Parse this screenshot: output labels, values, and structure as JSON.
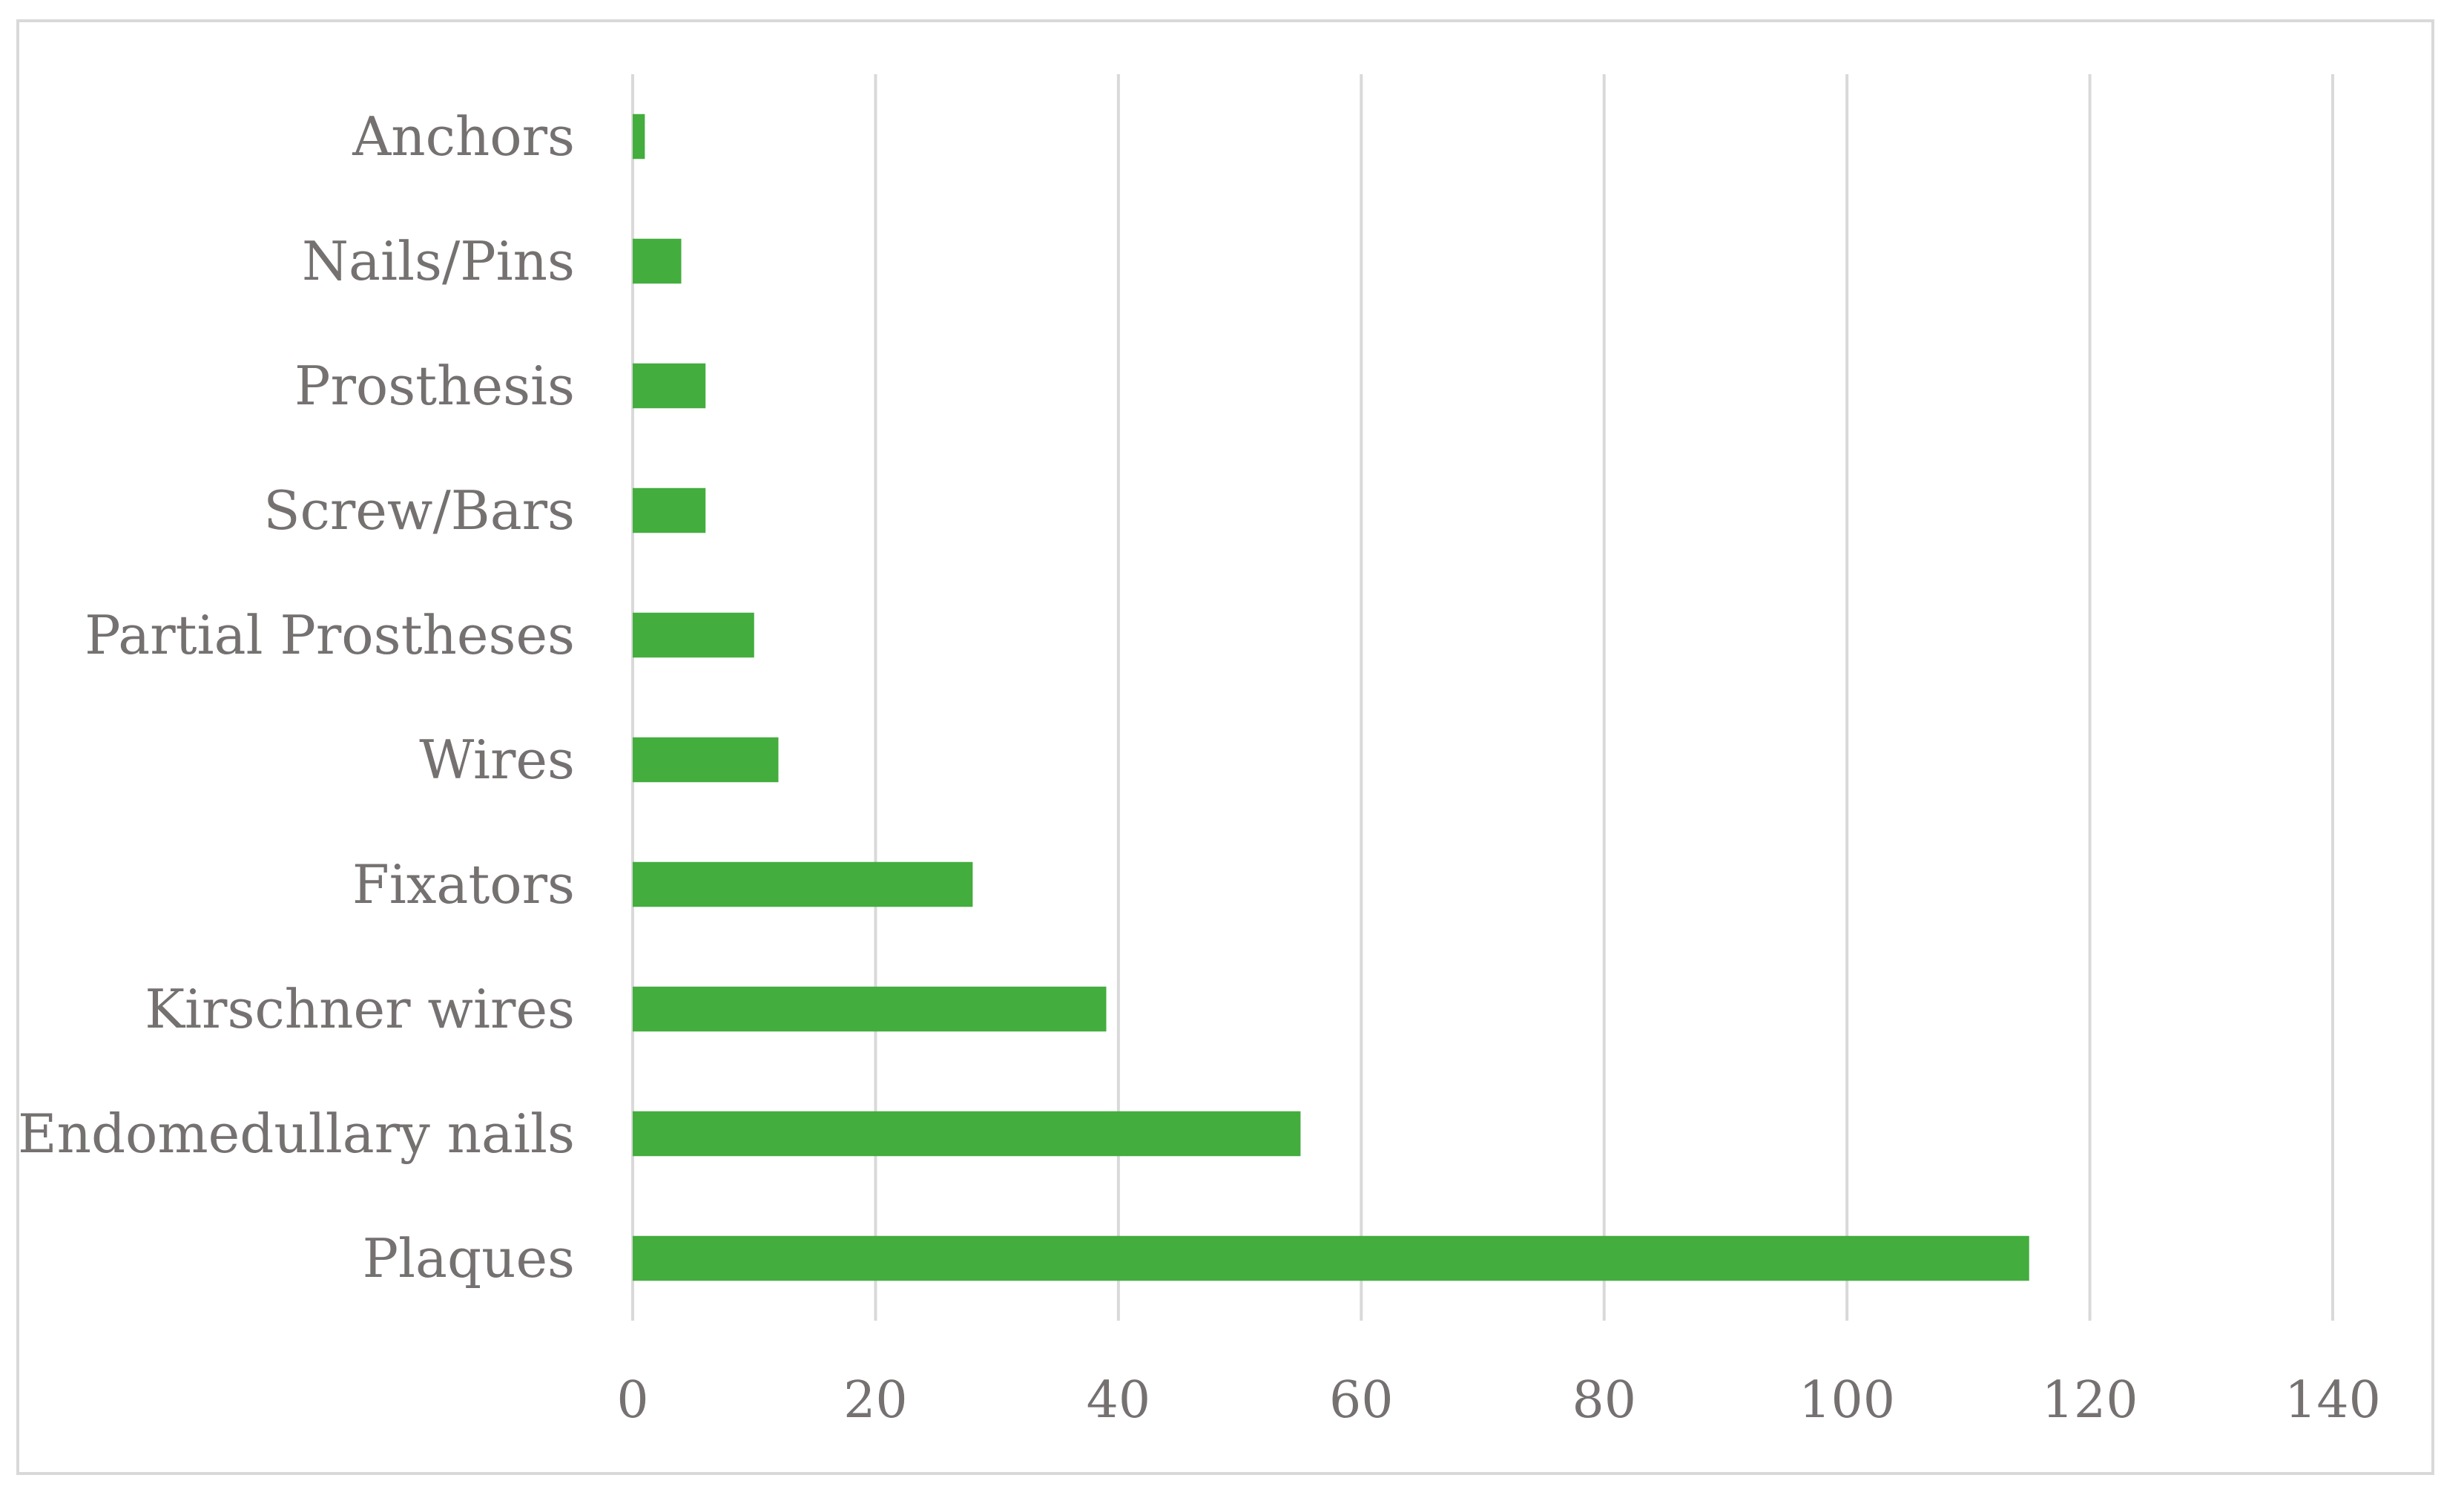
{
  "chart_data": {
    "type": "bar",
    "orientation": "horizontal",
    "title": "",
    "xlabel": "",
    "ylabel": "",
    "categories": [
      "Anchors",
      "Nails/Pins",
      "Prosthesis",
      "Screw/Bars",
      "Partial Prostheses",
      "Wires",
      "Fixators",
      "Kirschner wires",
      "Endomedullary nails",
      "Plaques"
    ],
    "values": [
      1,
      4,
      6,
      6,
      10,
      12,
      28,
      39,
      55,
      115
    ],
    "xlim": [
      0,
      140
    ],
    "x_ticks": [
      0,
      20,
      40,
      60,
      80,
      100,
      120,
      140
    ],
    "x_tick_labels": [
      "0",
      "20",
      "40",
      "60",
      "80",
      "100",
      "120",
      "140"
    ],
    "grid": "vertical",
    "legend": "none",
    "bar_color": "#43ad3e",
    "grid_color": "#d9d9d9",
    "text_color": "#767171"
  }
}
